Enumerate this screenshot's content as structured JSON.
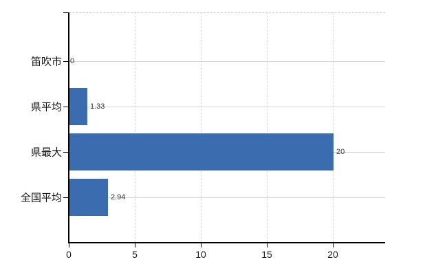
{
  "chart_data": {
    "type": "bar",
    "orientation": "horizontal",
    "title": "",
    "xlabel": "",
    "ylabel": "",
    "categories": [
      "笛吹市",
      "県平均",
      "県最大",
      "全国平均"
    ],
    "values": [
      0,
      1.33,
      20,
      2.94
    ],
    "value_labels": [
      "0",
      "1.33",
      "20",
      "2.94"
    ],
    "x_ticks": [
      0,
      5,
      10,
      15,
      20
    ],
    "x_tick_labels": [
      "0",
      "5",
      "10",
      "15",
      "20"
    ],
    "xlim": [
      0,
      23.9
    ],
    "grid": true,
    "legend": false,
    "colors": {
      "bar": "#3c6cb0",
      "horizontal_grid": "#cfd8cf",
      "vertical_grid": "#d6d6d6",
      "top_border": "#c9c9c9",
      "axis": "#000000",
      "category_label": "#111111",
      "tick_label": "#1a1a1a",
      "value_label": "#333333",
      "background": "#ffffff"
    }
  }
}
